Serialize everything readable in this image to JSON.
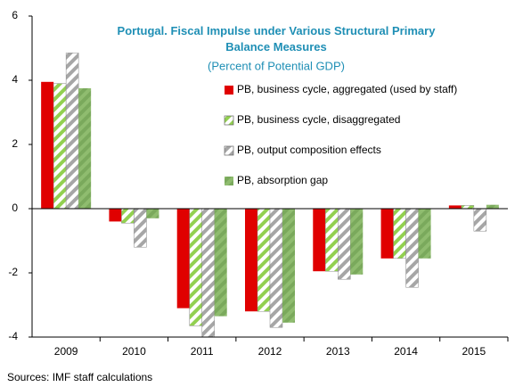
{
  "chart_data": {
    "type": "bar",
    "title": "Portugal. Fiscal Impulse under Various Structural Primary Balance Measures",
    "subtitle": "(Percent of Potential GDP)",
    "categories": [
      "2009",
      "2010",
      "2011",
      "2012",
      "2013",
      "2014",
      "2015"
    ],
    "series": [
      {
        "name": "PB, business cycle, aggregated (used by staff)",
        "color": "#e00000",
        "hatch": false,
        "values": [
          3.95,
          -0.4,
          -3.1,
          -3.2,
          -1.95,
          -1.55,
          0.1
        ]
      },
      {
        "name": "PB, business cycle, disaggregated",
        "color": "#92d050",
        "hatch": true,
        "values": [
          3.9,
          -0.45,
          -3.65,
          -3.2,
          -1.95,
          -1.55,
          0.1
        ]
      },
      {
        "name": "PB, output composition effects",
        "color": "#a6a6a6",
        "hatch": true,
        "values": [
          4.85,
          -1.2,
          -4.0,
          -3.7,
          -2.2,
          -2.45,
          -0.7
        ]
      },
      {
        "name": "PB, absorption gap",
        "color": "#8fbc6f",
        "hatch": false,
        "values": [
          3.75,
          -0.3,
          -3.35,
          -3.55,
          -2.05,
          -1.55,
          0.12
        ]
      }
    ],
    "ylim": [
      -4,
      6
    ],
    "yticks": [
      -4,
      -2,
      0,
      2,
      4,
      6
    ],
    "source": "Sources: IMF staff calculations"
  }
}
